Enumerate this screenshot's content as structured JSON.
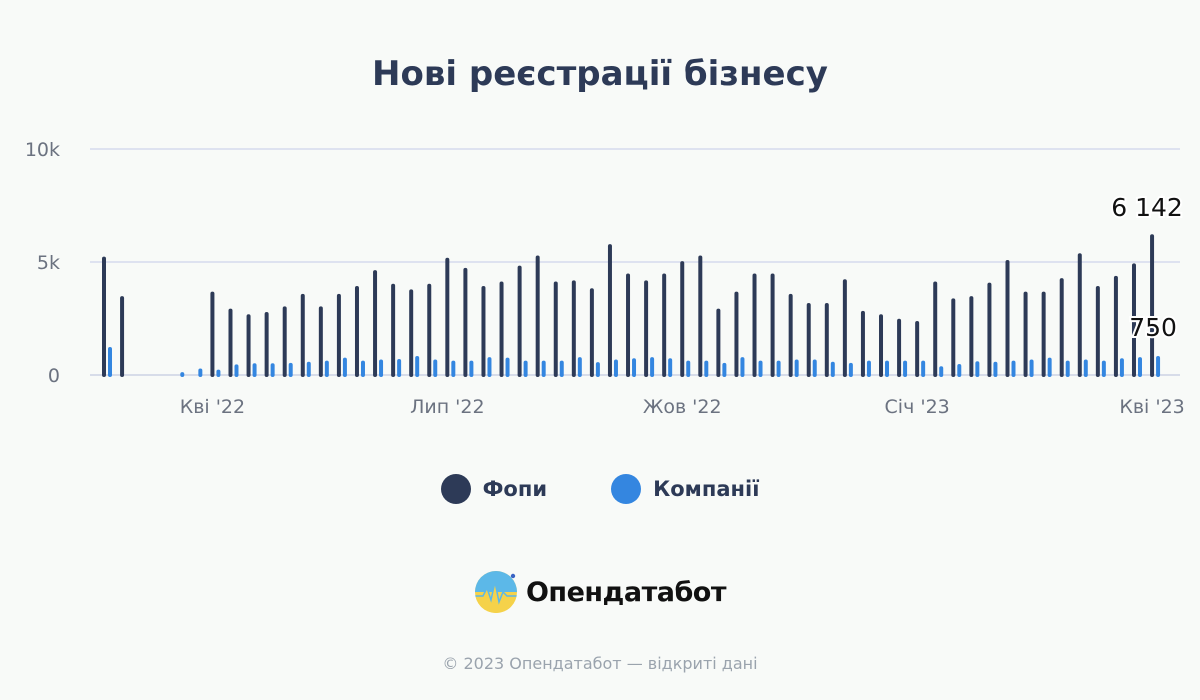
{
  "chart_data": {
    "type": "bar",
    "title": "Нові реєстрації бізнесу",
    "xlabel": "",
    "ylabel": "",
    "ylim": [
      0,
      10000
    ],
    "yticks": [
      {
        "value": 0,
        "label": "0"
      },
      {
        "value": 5000,
        "label": "5k"
      },
      {
        "value": 10000,
        "label": "10k"
      }
    ],
    "xticks": [
      {
        "index": 6,
        "label": "Кві '22"
      },
      {
        "index": 19,
        "label": "Лип '22"
      },
      {
        "index": 32,
        "label": "Жов '22"
      },
      {
        "index": 45,
        "label": "Січ '23"
      },
      {
        "index": 58,
        "label": "Кві '23"
      }
    ],
    "grid": true,
    "legend_position": "bottom",
    "series": [
      {
        "name": "Фопи",
        "color": "#2d3a57",
        "values": [
          5150,
          3400,
          0,
          0,
          0,
          0,
          3600,
          2850,
          2600,
          2700,
          2950,
          3500,
          2950,
          3500,
          3850,
          4550,
          3950,
          3700,
          3950,
          5100,
          4650,
          3850,
          4050,
          4750,
          5200,
          4050,
          4100,
          3750,
          5700,
          4400,
          4100,
          4400,
          4950,
          5200,
          2850,
          3600,
          4400,
          4400,
          3500,
          3100,
          3100,
          4150,
          2750,
          2600,
          2400,
          2300,
          4050,
          3300,
          3400,
          4000,
          5000,
          3600,
          3600,
          4200,
          5300,
          3850,
          4300,
          4850,
          6142
        ]
      },
      {
        "name": "Компанії",
        "color": "#3486e0",
        "values": [
          1150,
          0,
          0,
          0,
          40,
          200,
          150,
          380,
          430,
          430,
          450,
          500,
          550,
          680,
          550,
          600,
          620,
          750,
          600,
          550,
          550,
          700,
          680,
          550,
          550,
          550,
          700,
          480,
          600,
          650,
          700,
          650,
          550,
          550,
          450,
          700,
          550,
          550,
          600,
          600,
          500,
          450,
          550,
          550,
          550,
          550,
          300,
          400,
          520,
          500,
          550,
          600,
          680,
          550,
          600,
          550,
          650,
          700,
          750
        ]
      }
    ],
    "data_labels": [
      {
        "series": 0,
        "index": 58,
        "text": "6 142"
      },
      {
        "series": 1,
        "index": 58,
        "text": "750"
      }
    ]
  },
  "legend": {
    "items": [
      {
        "label": "Фопи",
        "color": "#2d3a57"
      },
      {
        "label": "Компанії",
        "color": "#3486e0"
      }
    ]
  },
  "brand": {
    "name": "Опендатабот"
  },
  "footer": {
    "text": "© 2023 Опендатабот — відкриті дані"
  }
}
